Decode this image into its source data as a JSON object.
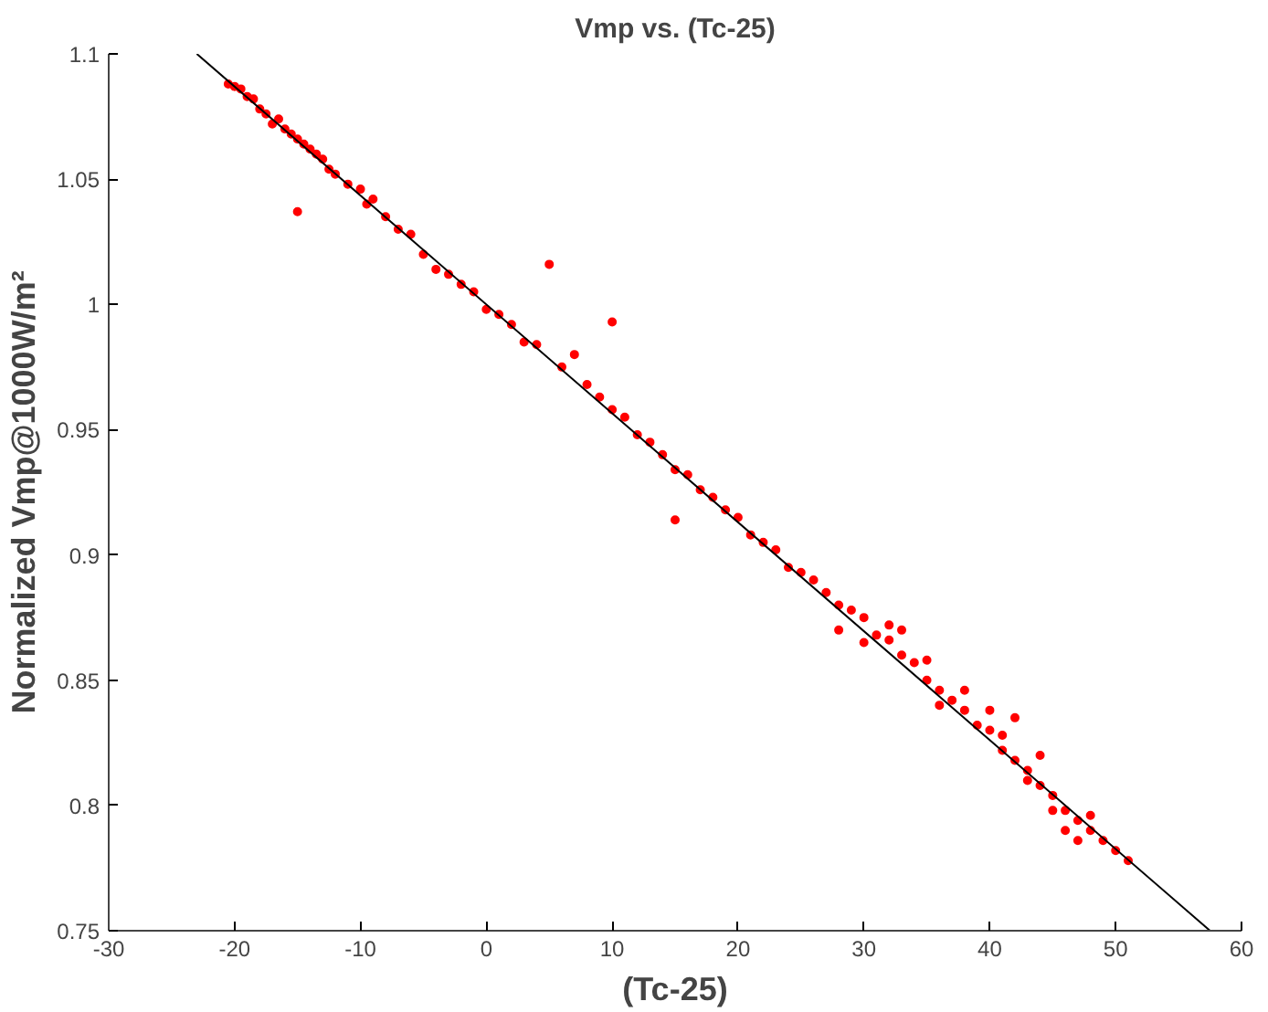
{
  "chart_data": {
    "type": "scatter",
    "title": "Vmp vs. (Tc-25)",
    "xlabel": "(Tc-25)",
    "ylabel": "Normalized Vmp@1000W/m²",
    "xlim": [
      -30,
      60
    ],
    "xticks": [
      -30,
      -20,
      -10,
      0,
      10,
      20,
      30,
      40,
      50,
      60
    ],
    "ylim": [
      0.75,
      1.1
    ],
    "yticks": [
      0.75,
      0.8,
      0.85,
      0.9,
      0.95,
      1,
      1.05,
      1.1
    ],
    "grid": false,
    "series": [
      {
        "marker": "circle",
        "color": "#ff0000",
        "x": [
          -20.5,
          -20,
          -19.5,
          -19,
          -18.5,
          -18,
          -17.5,
          -17,
          -16.5,
          -16,
          -15.5,
          -15,
          -14.5,
          -14,
          -13.5,
          -15,
          -13,
          -12.5,
          -12,
          -11,
          -10,
          -9.5,
          -9,
          -8,
          -7,
          -6,
          -5,
          -4,
          -3,
          -2,
          -1,
          0,
          1,
          2,
          3,
          4,
          5,
          6,
          7,
          8,
          9,
          10,
          10,
          11,
          12,
          13,
          14,
          15,
          15,
          16,
          17,
          18,
          19,
          20,
          21,
          22,
          23,
          24,
          25,
          26,
          27,
          28,
          29,
          30,
          31,
          32,
          33,
          34,
          35,
          36,
          37,
          38,
          39,
          40,
          41,
          42,
          43,
          44,
          45,
          46,
          47,
          48,
          49,
          50,
          51,
          28,
          30,
          32,
          35,
          38,
          40,
          42,
          44,
          45,
          46,
          47,
          48,
          43,
          41,
          36,
          33
        ],
        "values": [
          1.088,
          1.087,
          1.086,
          1.083,
          1.082,
          1.078,
          1.076,
          1.072,
          1.074,
          1.07,
          1.068,
          1.066,
          1.064,
          1.062,
          1.06,
          1.037,
          1.058,
          1.054,
          1.052,
          1.048,
          1.046,
          1.04,
          1.042,
          1.035,
          1.03,
          1.028,
          1.02,
          1.014,
          1.012,
          1.008,
          1.005,
          0.998,
          0.996,
          0.992,
          0.985,
          0.984,
          1.016,
          0.975,
          0.98,
          0.968,
          0.963,
          0.993,
          0.958,
          0.955,
          0.948,
          0.945,
          0.94,
          0.914,
          0.934,
          0.932,
          0.926,
          0.923,
          0.918,
          0.915,
          0.908,
          0.905,
          0.902,
          0.895,
          0.893,
          0.89,
          0.885,
          0.88,
          0.878,
          0.875,
          0.868,
          0.866,
          0.86,
          0.857,
          0.85,
          0.846,
          0.842,
          0.838,
          0.832,
          0.83,
          0.822,
          0.818,
          0.814,
          0.808,
          0.804,
          0.798,
          0.794,
          0.79,
          0.786,
          0.782,
          0.778,
          0.87,
          0.865,
          0.872,
          0.858,
          0.846,
          0.838,
          0.835,
          0.82,
          0.798,
          0.79,
          0.786,
          0.796,
          0.81,
          0.828,
          0.84,
          0.87
        ]
      },
      {
        "type": "line",
        "marker": "none",
        "color": "#000000",
        "x": [
          -23,
          57.5
        ],
        "values": [
          1.1,
          0.75
        ]
      }
    ]
  }
}
